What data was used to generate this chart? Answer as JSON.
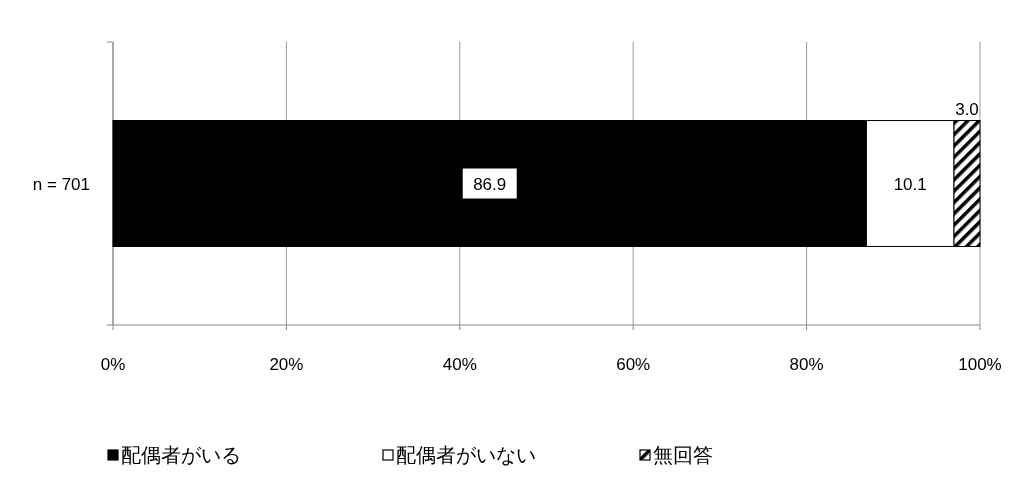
{
  "chart_data": {
    "type": "bar",
    "orientation": "horizontal",
    "stacked": true,
    "categories": [
      "n = 701"
    ],
    "series": [
      {
        "name": "配偶者がいる",
        "color": "#000000",
        "values": [
          86.9
        ],
        "value_labels": [
          "86.9"
        ]
      },
      {
        "name": "配偶者がいない",
        "color": "#ffffff",
        "values": [
          10.1
        ],
        "value_labels": [
          "10.1"
        ]
      },
      {
        "name": "無回答",
        "color": "#000000",
        "values": [
          3.0
        ],
        "value_labels": [
          "3.0"
        ]
      }
    ],
    "xlim": [
      0,
      100
    ],
    "xticks": [
      {
        "value": 0,
        "label": "0%"
      },
      {
        "value": 20,
        "label": "20%"
      },
      {
        "value": 40,
        "label": "40%"
      },
      {
        "value": 60,
        "label": "60%"
      },
      {
        "value": 80,
        "label": "80%"
      },
      {
        "value": 100,
        "label": "100%"
      }
    ],
    "grid": "x",
    "legend": "bottom"
  }
}
